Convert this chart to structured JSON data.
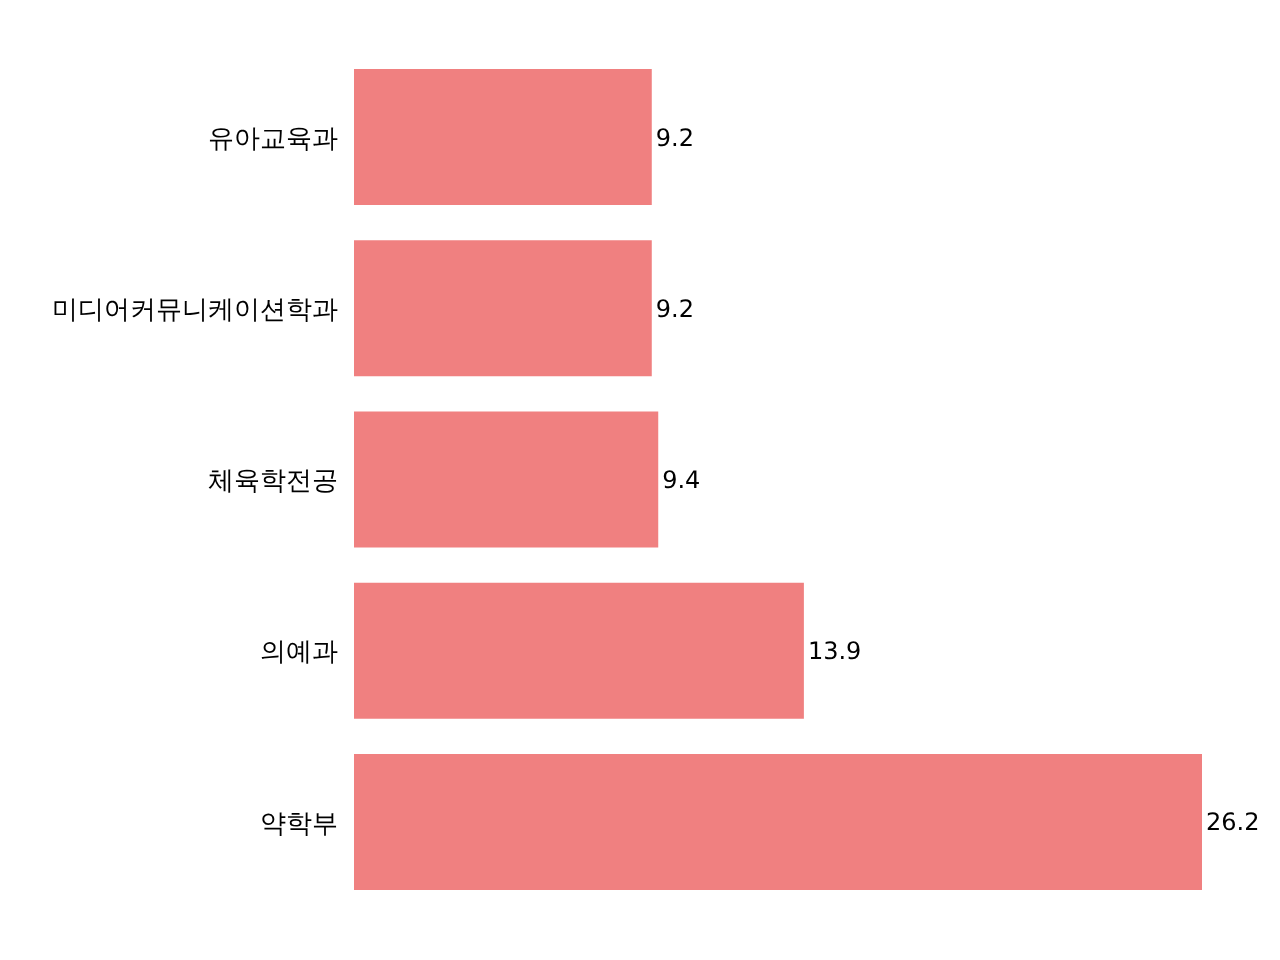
{
  "chart_data": {
    "type": "bar",
    "orientation": "horizontal",
    "categories": [
      "유아교육과",
      "미디어커뮤니케이션학과",
      "체육학전공",
      "의예과",
      "약학부"
    ],
    "values": [
      9.2,
      9.2,
      9.4,
      13.9,
      26.2
    ],
    "color": "#f08080",
    "data_labels": true
  }
}
